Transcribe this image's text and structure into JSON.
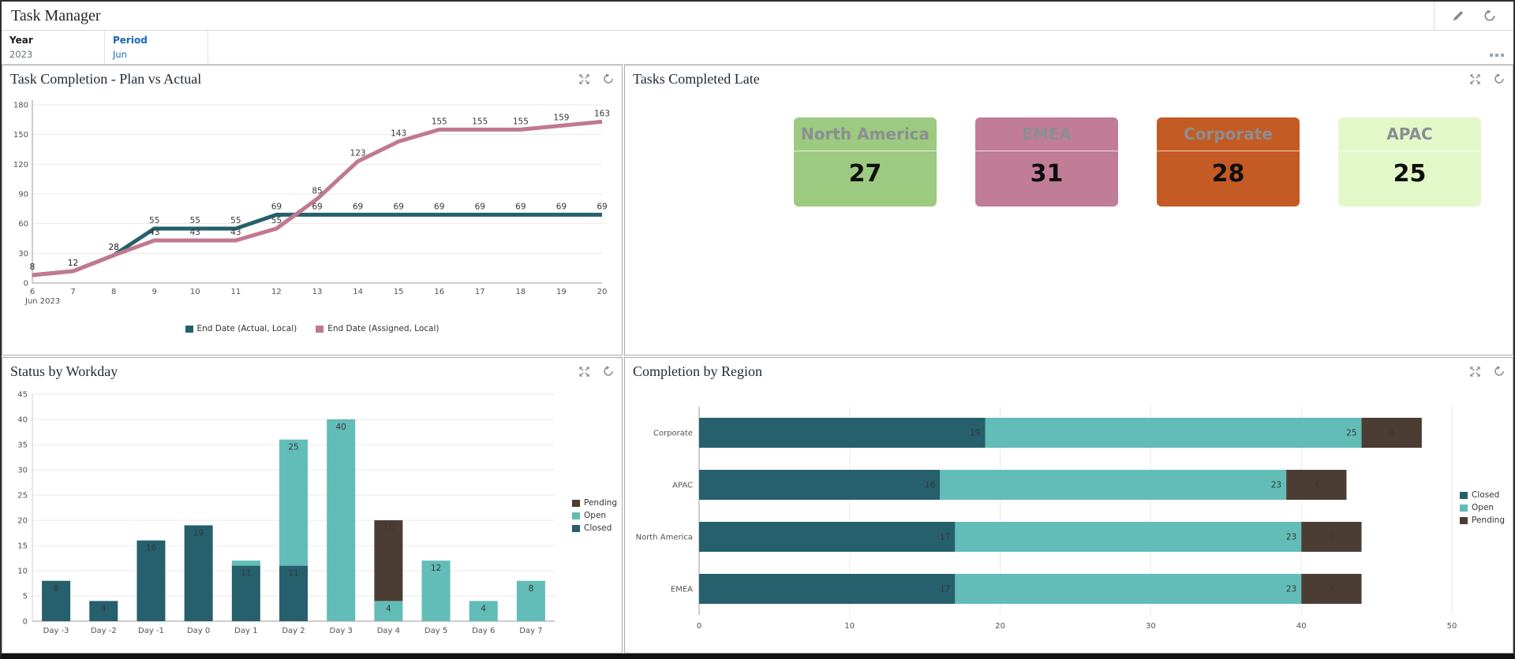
{
  "header": {
    "title": "Task Manager",
    "edit_icon": "pencil-icon",
    "refresh_icon": "refresh-icon"
  },
  "filters": {
    "year": {
      "label": "Year",
      "value": "2023"
    },
    "period": {
      "label": "Period",
      "value": "Jun"
    },
    "more_icon": "ellipsis-icon"
  },
  "panels": [
    {
      "title": "Task Completion - Plan vs Actual"
    },
    {
      "title": "Tasks Completed Late",
      "tiles": [
        {
          "label": "North America",
          "value": "27",
          "color": "#9CCA80"
        },
        {
          "label": "EMEA",
          "value": "31",
          "color": "#C07D95"
        },
        {
          "label": "Corporate",
          "value": "28",
          "color": "#C45B24"
        },
        {
          "label": "APAC",
          "value": "25",
          "color": "#E3F8C8"
        }
      ]
    },
    {
      "title": "Status by Workday"
    },
    {
      "title": "Completion by Region"
    }
  ],
  "colors": {
    "closed_dark_teal": "#25606C",
    "open_light_teal": "#62BCB8",
    "pending_brown": "#4B3D33",
    "assigned_pink": "#C0798F",
    "filter_blue": "#1767b3"
  },
  "chart_data": [
    {
      "type": "line",
      "title": "Task Completion - Plan vs Actual",
      "x": [
        6,
        7,
        8,
        9,
        10,
        11,
        12,
        13,
        14,
        15,
        16,
        17,
        18,
        19,
        20
      ],
      "x_sublabel": "Jun 2023",
      "ylim": [
        0,
        180
      ],
      "ystep": 30,
      "grid": true,
      "legend_position": "bottom",
      "series": [
        {
          "name": "End Date (Actual, Local)",
          "color": "#25606C",
          "values": [
            8,
            12,
            28,
            55,
            55,
            55,
            69,
            69,
            69,
            69,
            69,
            69,
            69,
            69,
            69
          ]
        },
        {
          "name": "End Date (Assigned, Local)",
          "color": "#C0798F",
          "values": [
            8,
            12,
            28,
            43,
            43,
            43,
            55,
            85,
            123,
            143,
            155,
            155,
            155,
            159,
            163
          ]
        }
      ]
    },
    {
      "type": "bar",
      "title": "Status by Workday",
      "categories": [
        "Day -3",
        "Day -2",
        "Day -1",
        "Day 0",
        "Day 1",
        "Day 2",
        "Day 3",
        "Day 4",
        "Day 5",
        "Day 6",
        "Day 7"
      ],
      "ylim": [
        0,
        45
      ],
      "ystep": 5,
      "grid": true,
      "legend_position": "right",
      "legend_order": [
        "Pending",
        "Open",
        "Closed"
      ],
      "series": [
        {
          "name": "Closed",
          "color": "#25606C",
          "label_color": "#ffffff",
          "values": [
            8,
            4,
            16,
            19,
            11,
            11,
            0,
            0,
            0,
            0,
            0
          ]
        },
        {
          "name": "Open",
          "color": "#62BCB8",
          "label_color": "#1d1d1d",
          "values": [
            0,
            0,
            0,
            0,
            1,
            25,
            40,
            4,
            12,
            4,
            8
          ]
        },
        {
          "name": "Pending",
          "color": "#4B3D33",
          "label_color": "#ffffff",
          "values": [
            0,
            0,
            0,
            0,
            0,
            0,
            0,
            16,
            0,
            0,
            0
          ]
        }
      ]
    },
    {
      "type": "hbar",
      "title": "Completion by Region",
      "categories": [
        "Corporate",
        "APAC",
        "North America",
        "EMEA"
      ],
      "xlim": [
        0,
        50
      ],
      "xstep": 10,
      "grid": true,
      "legend_position": "right",
      "legend_order": [
        "Closed",
        "Open",
        "Pending"
      ],
      "series": [
        {
          "name": "Closed",
          "color": "#25606C",
          "label_color": "#ffffff",
          "values": [
            19,
            16,
            17,
            17
          ]
        },
        {
          "name": "Open",
          "color": "#62BCB8",
          "label_color": "#1d1d1d",
          "values": [
            25,
            23,
            23,
            23
          ]
        },
        {
          "name": "Pending",
          "color": "#4B3D33",
          "label_color": "#ffffff",
          "values": [
            4,
            4,
            4,
            4
          ]
        }
      ]
    }
  ]
}
